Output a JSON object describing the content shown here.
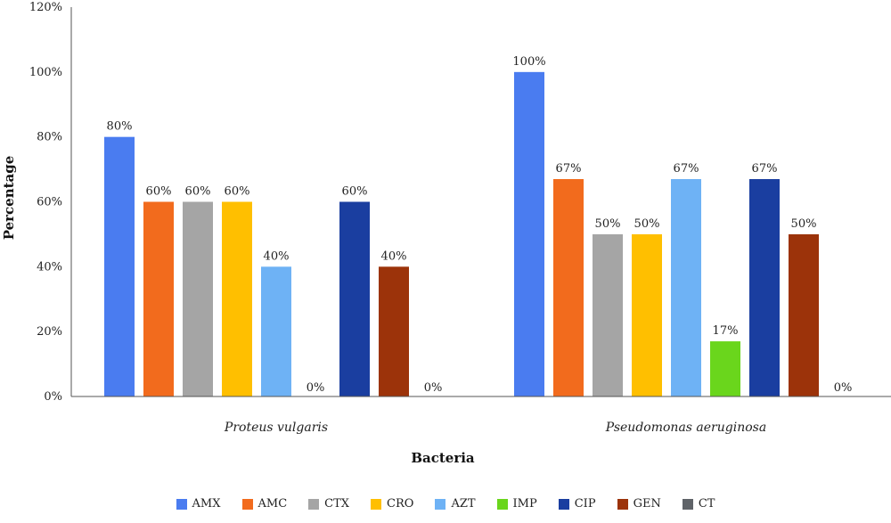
{
  "chart_data": {
    "type": "bar",
    "categories": [
      "Proteus vulgaris",
      "Pseudomonas aeruginosa"
    ],
    "xlabel": "Bacteria",
    "ylabel": "Percentage",
    "ylim": [
      0,
      120
    ],
    "yticks": [
      0,
      20,
      40,
      60,
      80,
      100,
      120
    ],
    "ytick_labels": [
      "0%",
      "20%",
      "40%",
      "60%",
      "80%",
      "100%",
      "120%"
    ],
    "grid": false,
    "legend_position": "bottom",
    "series": [
      {
        "name": "AMX",
        "color": "#4a7cf0",
        "values": [
          80,
          100
        ],
        "labels": [
          "80%",
          "100%"
        ]
      },
      {
        "name": "AMC",
        "color": "#f26b1d",
        "values": [
          60,
          67
        ],
        "labels": [
          "60%",
          "67%"
        ]
      },
      {
        "name": "CTX",
        "color": "#a5a5a5",
        "values": [
          60,
          50
        ],
        "labels": [
          "60%",
          "50%"
        ]
      },
      {
        "name": "CRO",
        "color": "#ffbf00",
        "values": [
          60,
          50
        ],
        "labels": [
          "60%",
          "50%"
        ]
      },
      {
        "name": "AZT",
        "color": "#6eb2f5",
        "values": [
          40,
          67
        ],
        "labels": [
          "40%",
          "67%"
        ]
      },
      {
        "name": "IMP",
        "color": "#6ad61c",
        "values": [
          0,
          17
        ],
        "labels": [
          "0%",
          "17%"
        ]
      },
      {
        "name": "CIP",
        "color": "#1a3ea0",
        "values": [
          60,
          67
        ],
        "labels": [
          "60%",
          "67%"
        ]
      },
      {
        "name": "GEN",
        "color": "#9c330a",
        "values": [
          40,
          50
        ],
        "labels": [
          "40%",
          "50%"
        ]
      },
      {
        "name": "CT",
        "color": "#5f6368",
        "values": [
          0,
          0
        ],
        "labels": [
          "0%",
          "0%"
        ]
      }
    ]
  }
}
